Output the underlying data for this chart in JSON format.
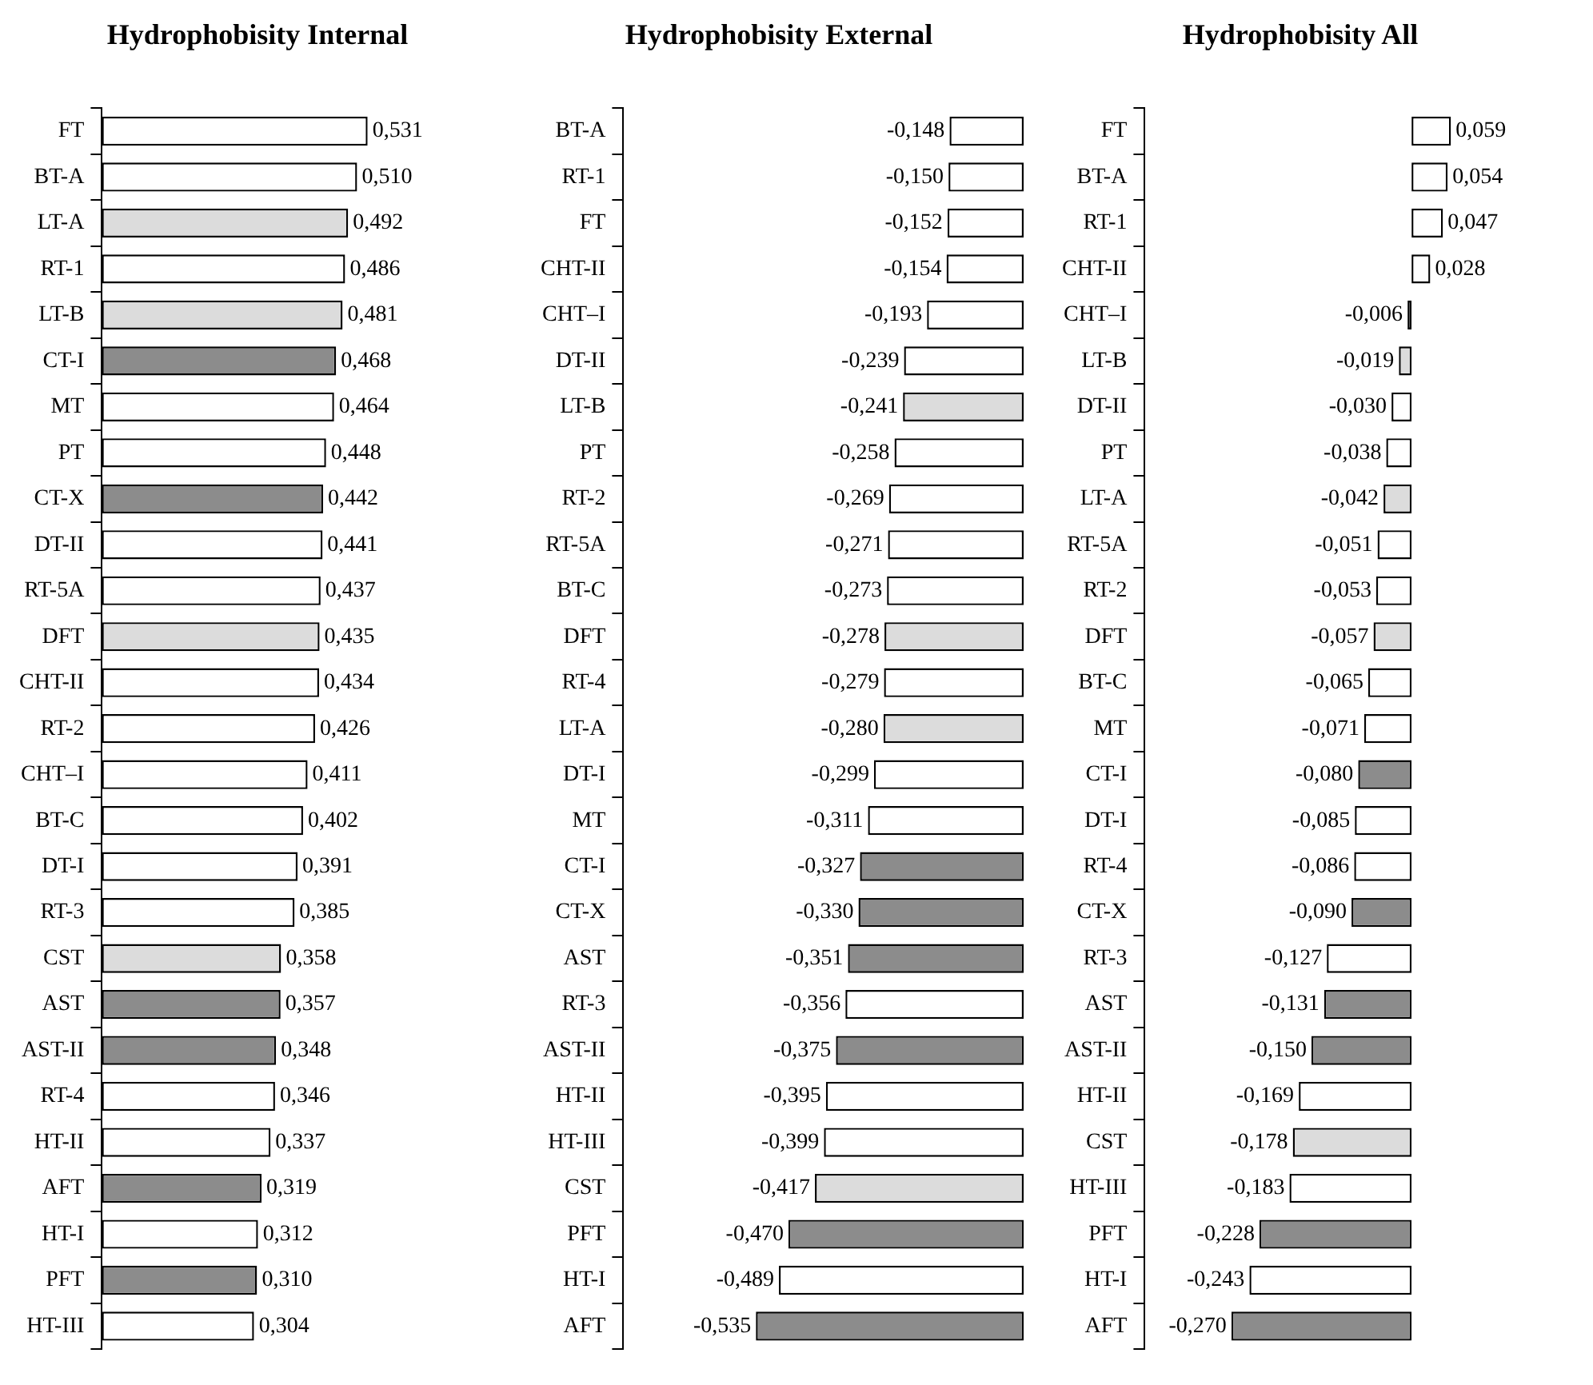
{
  "chart_data": [
    {
      "type": "bar",
      "orientation": "horizontal",
      "title": "Hydrophobisity Internal",
      "tick_labels": "y",
      "grid": false,
      "legend": false,
      "categories": [
        "FT",
        "BT-A",
        "LT-A",
        "RT-1",
        "LT-B",
        "CT-I",
        "MT",
        "PT",
        "CT-X",
        "DT-II",
        "RT-5A",
        "DFT",
        "CHT-II",
        "RT-2",
        "CHT–I",
        "BT-C",
        "DT-I",
        "RT-3",
        "CST",
        "AST",
        "AST-II",
        "RT-4",
        "HT-II",
        "AFT",
        "HT-I",
        "PFT",
        "HT-III"
      ],
      "values": [
        0.531,
        0.51,
        0.492,
        0.486,
        0.481,
        0.468,
        0.464,
        0.448,
        0.442,
        0.441,
        0.437,
        0.435,
        0.434,
        0.426,
        0.411,
        0.402,
        0.391,
        0.385,
        0.358,
        0.357,
        0.348,
        0.346,
        0.337,
        0.319,
        0.312,
        0.31,
        0.304
      ],
      "value_labels": [
        "0,531",
        "0,510",
        "0,492",
        "0,486",
        "0,481",
        "0,468",
        "0,464",
        "0,448",
        "0,442",
        "0,441",
        "0,437",
        "0,435",
        "0,434",
        "0,426",
        "0,411",
        "0,402",
        "0,391",
        "0,385",
        "0,358",
        "0,357",
        "0,348",
        "0,346",
        "0,337",
        "0,319",
        "0,312",
        "0,310",
        "0,304"
      ],
      "colors": [
        "#ffffff",
        "#ffffff",
        "#dcdcdc",
        "#ffffff",
        "#dcdcdc",
        "#8c8c8c",
        "#ffffff",
        "#ffffff",
        "#8c8c8c",
        "#ffffff",
        "#ffffff",
        "#dcdcdc",
        "#ffffff",
        "#ffffff",
        "#ffffff",
        "#ffffff",
        "#ffffff",
        "#ffffff",
        "#dcdcdc",
        "#8c8c8c",
        "#8c8c8c",
        "#ffffff",
        "#ffffff",
        "#8c8c8c",
        "#ffffff",
        "#8c8c8c",
        "#ffffff"
      ]
    },
    {
      "type": "bar",
      "orientation": "horizontal",
      "title": "Hydrophobisity External",
      "tick_labels": "y",
      "grid": false,
      "legend": false,
      "categories": [
        "BT-A",
        "RT-1",
        "FT",
        "CHT-II",
        "CHT–I",
        "DT-II",
        "LT-B",
        "PT",
        "RT-2",
        "RT-5A",
        "BT-C",
        "DFT",
        "RT-4",
        "LT-A",
        "DT-I",
        "MT",
        "CT-I",
        "CT-X",
        "AST",
        "RT-3",
        "AST-II",
        "HT-II",
        "HT-III",
        "CST",
        "PFT",
        "HT-I",
        "AFT"
      ],
      "values": [
        -0.148,
        -0.15,
        -0.152,
        -0.154,
        -0.193,
        -0.239,
        -0.241,
        -0.258,
        -0.269,
        -0.271,
        -0.273,
        -0.278,
        -0.279,
        -0.28,
        -0.299,
        -0.311,
        -0.327,
        -0.33,
        -0.351,
        -0.356,
        -0.375,
        -0.395,
        -0.399,
        -0.417,
        -0.47,
        -0.489,
        -0.535
      ],
      "value_labels": [
        "-0,148",
        "-0,150",
        "-0,152",
        "-0,154",
        "-0,193",
        "-0,239",
        "-0,241",
        "-0,258",
        "-0,269",
        "-0,271",
        "-0,273",
        "-0,278",
        "-0,279",
        "-0,280",
        "-0,299",
        "-0,311",
        "-0,327",
        "-0,330",
        "-0,351",
        "-0,356",
        "-0,375",
        "-0,395",
        "-0,399",
        "-0,417",
        "-0,470",
        "-0,489",
        "-0,535"
      ],
      "colors": [
        "#ffffff",
        "#ffffff",
        "#ffffff",
        "#ffffff",
        "#ffffff",
        "#ffffff",
        "#dcdcdc",
        "#ffffff",
        "#ffffff",
        "#ffffff",
        "#ffffff",
        "#dcdcdc",
        "#ffffff",
        "#dcdcdc",
        "#ffffff",
        "#ffffff",
        "#8c8c8c",
        "#8c8c8c",
        "#8c8c8c",
        "#ffffff",
        "#8c8c8c",
        "#ffffff",
        "#ffffff",
        "#dcdcdc",
        "#8c8c8c",
        "#ffffff",
        "#8c8c8c"
      ]
    },
    {
      "type": "bar",
      "orientation": "horizontal",
      "title": "Hydrophobisity All",
      "tick_labels": "y",
      "grid": false,
      "legend": false,
      "categories": [
        "FT",
        "BT-A",
        "RT-1",
        "CHT-II",
        "CHT–I",
        "LT-B",
        "DT-II",
        "PT",
        "LT-A",
        "RT-5A",
        "RT-2",
        "DFT",
        "BT-C",
        "MT",
        "CT-I",
        "DT-I",
        "RT-4",
        "CT-X",
        "RT-3",
        "AST",
        "AST-II",
        "HT-II",
        "CST",
        "HT-III",
        "PFT",
        "HT-I",
        "AFT"
      ],
      "values": [
        0.059,
        0.054,
        0.047,
        0.028,
        -0.006,
        -0.019,
        -0.03,
        -0.038,
        -0.042,
        -0.051,
        -0.053,
        -0.057,
        -0.065,
        -0.071,
        -0.08,
        -0.085,
        -0.086,
        -0.09,
        -0.127,
        -0.131,
        -0.15,
        -0.169,
        -0.178,
        -0.183,
        -0.228,
        -0.243,
        -0.27
      ],
      "value_labels": [
        "0,059",
        "0,054",
        "0,047",
        "0,028",
        "-0,006",
        "-0,019",
        "-0,030",
        "-0,038",
        "-0,042",
        "-0,051",
        "-0,053",
        "-0,057",
        "-0,065",
        "-0,071",
        "-0,080",
        "-0,085",
        "-0,086",
        "-0,090",
        "-0,127",
        "-0,131",
        "-0,150",
        "-0,169",
        "-0,178",
        "-0,183",
        "-0,228",
        "-0,243",
        "-0,270"
      ],
      "colors": [
        "#ffffff",
        "#ffffff",
        "#ffffff",
        "#ffffff",
        "#ffffff",
        "#dcdcdc",
        "#ffffff",
        "#ffffff",
        "#dcdcdc",
        "#ffffff",
        "#ffffff",
        "#dcdcdc",
        "#ffffff",
        "#ffffff",
        "#8c8c8c",
        "#ffffff",
        "#ffffff",
        "#8c8c8c",
        "#ffffff",
        "#8c8c8c",
        "#8c8c8c",
        "#ffffff",
        "#dcdcdc",
        "#ffffff",
        "#8c8c8c",
        "#ffffff",
        "#8c8c8c"
      ]
    }
  ]
}
